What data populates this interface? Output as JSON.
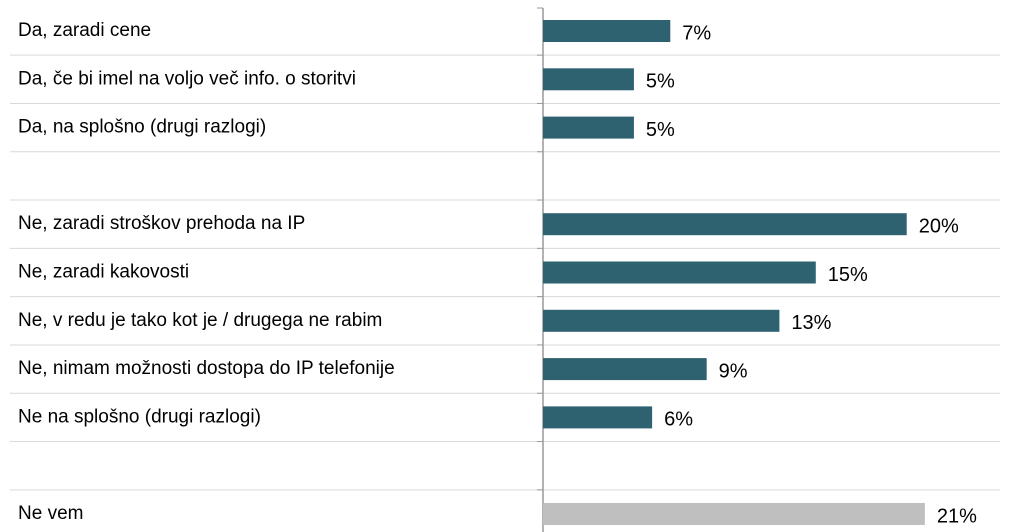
{
  "chart_data": {
    "type": "hbar",
    "categories": [
      "Da, zaradi cene",
      "Da, če bi imel na voljo več info. o storitvi",
      "Da, na splošno (drugi razlogi)",
      null,
      "Ne, zaradi stroškov prehoda na IP",
      "Ne, zaradi kakovosti",
      "Ne, v redu je tako kot je / drugega ne rabim",
      "Ne, nimam možnosti dostopa do IP telefonije",
      "Ne na splošno (drugi razlogi)",
      null,
      "Ne vem"
    ],
    "values": [
      7,
      5,
      5,
      null,
      20,
      15,
      13,
      9,
      6,
      null,
      21
    ],
    "value_labels": [
      "7%",
      "5%",
      "5%",
      null,
      "20%",
      "15%",
      "13%",
      "9%",
      "6%",
      null,
      "21%"
    ],
    "colors": [
      "#2e6271",
      "#2e6271",
      "#2e6271",
      null,
      "#2e6271",
      "#2e6271",
      "#2e6271",
      "#2e6271",
      "#2e6271",
      null,
      "#bfbfbf"
    ],
    "xlim": [
      0,
      27
    ]
  }
}
